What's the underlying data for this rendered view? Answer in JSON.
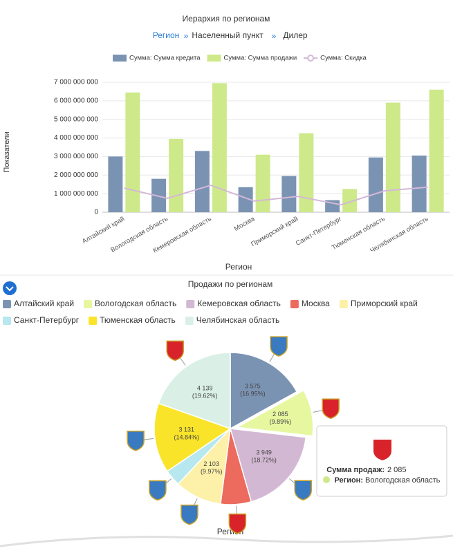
{
  "breadcrumb": [
    "Регион",
    "Населенный пункт",
    "Дилер"
  ],
  "chart_data": [
    {
      "type": "combo",
      "title": "Иерархия по регионам",
      "categories": [
        "Алтайский край",
        "Вологодская область",
        "Кемеровская область",
        "Москва",
        "Приморский край",
        "Санкт-Петербург",
        "Тюменская область",
        "Челябинская область"
      ],
      "series": [
        {
          "name": "Сумма: Сумма кредита",
          "kind": "bar",
          "color": "#7b93b3",
          "values": [
            3000000000,
            1800000000,
            3300000000,
            1350000000,
            1950000000,
            650000000,
            2950000000,
            3050000000
          ]
        },
        {
          "name": "Сумма: Сумма продажи",
          "kind": "bar",
          "color": "#cde98a",
          "values": [
            6450000000,
            3950000000,
            6950000000,
            3100000000,
            4250000000,
            1250000000,
            5900000000,
            6600000000
          ]
        },
        {
          "name": "Сумма: Скидка",
          "kind": "line",
          "color": "#d4b8d8",
          "values": [
            1300000000,
            750000000,
            1450000000,
            600000000,
            850000000,
            400000000,
            1150000000,
            1350000000
          ]
        }
      ],
      "ylim": [
        0,
        7000000000
      ],
      "yticks": [
        {
          "value": 0,
          "label": "0"
        },
        {
          "value": 1000000000,
          "label": "1 000 000 000"
        },
        {
          "value": 2000000000,
          "label": "2 000 000 000"
        },
        {
          "value": 3000000000,
          "label": "3 000 000 000"
        },
        {
          "value": 4000000000,
          "label": "4 000 000 000"
        },
        {
          "value": 5000000000,
          "label": "5 000 000 000"
        },
        {
          "value": 6000000000,
          "label": "6 000 000 000"
        },
        {
          "value": 7000000000,
          "label": "7 000 000 000"
        }
      ],
      "grid": true,
      "legend": "top",
      "ylabel": "Показатели",
      "xlabel": "Регион"
    },
    {
      "type": "pie",
      "title": "Продажи по регионам",
      "xlabel": "Регион",
      "categories": [
        "Алтайский край",
        "Вологодская область",
        "Кемеровская область",
        "Москва",
        "Приморский край",
        "Санкт-Петербург",
        "Тюменская область",
        "Челябинская область"
      ],
      "values": [
        3575,
        2085,
        3949,
        1370,
        2103,
        740,
        3131,
        4139
      ],
      "value_labels": [
        "3 575",
        "2 085",
        "3 949",
        null,
        "2 103",
        null,
        "3 131",
        "4 139"
      ],
      "percent_labels": [
        "(16.95%)",
        "(9.89%)",
        "(18.72%)",
        null,
        "(9.97%)",
        null,
        "(14.84%)",
        "(19.62%)"
      ],
      "colors": [
        "#7b93b3",
        "#e6f7a0",
        "#d3b8d3",
        "#ec6a5e",
        "#fdf0a8",
        "#b7e7ef",
        "#f9e42a",
        "#daf0e6"
      ],
      "exploded": 1,
      "legend": "top"
    }
  ],
  "tooltip": {
    "value_name": "Сумма продаж:",
    "value": "2 085",
    "category_name": "Регион:",
    "category": "Вологодская область"
  }
}
